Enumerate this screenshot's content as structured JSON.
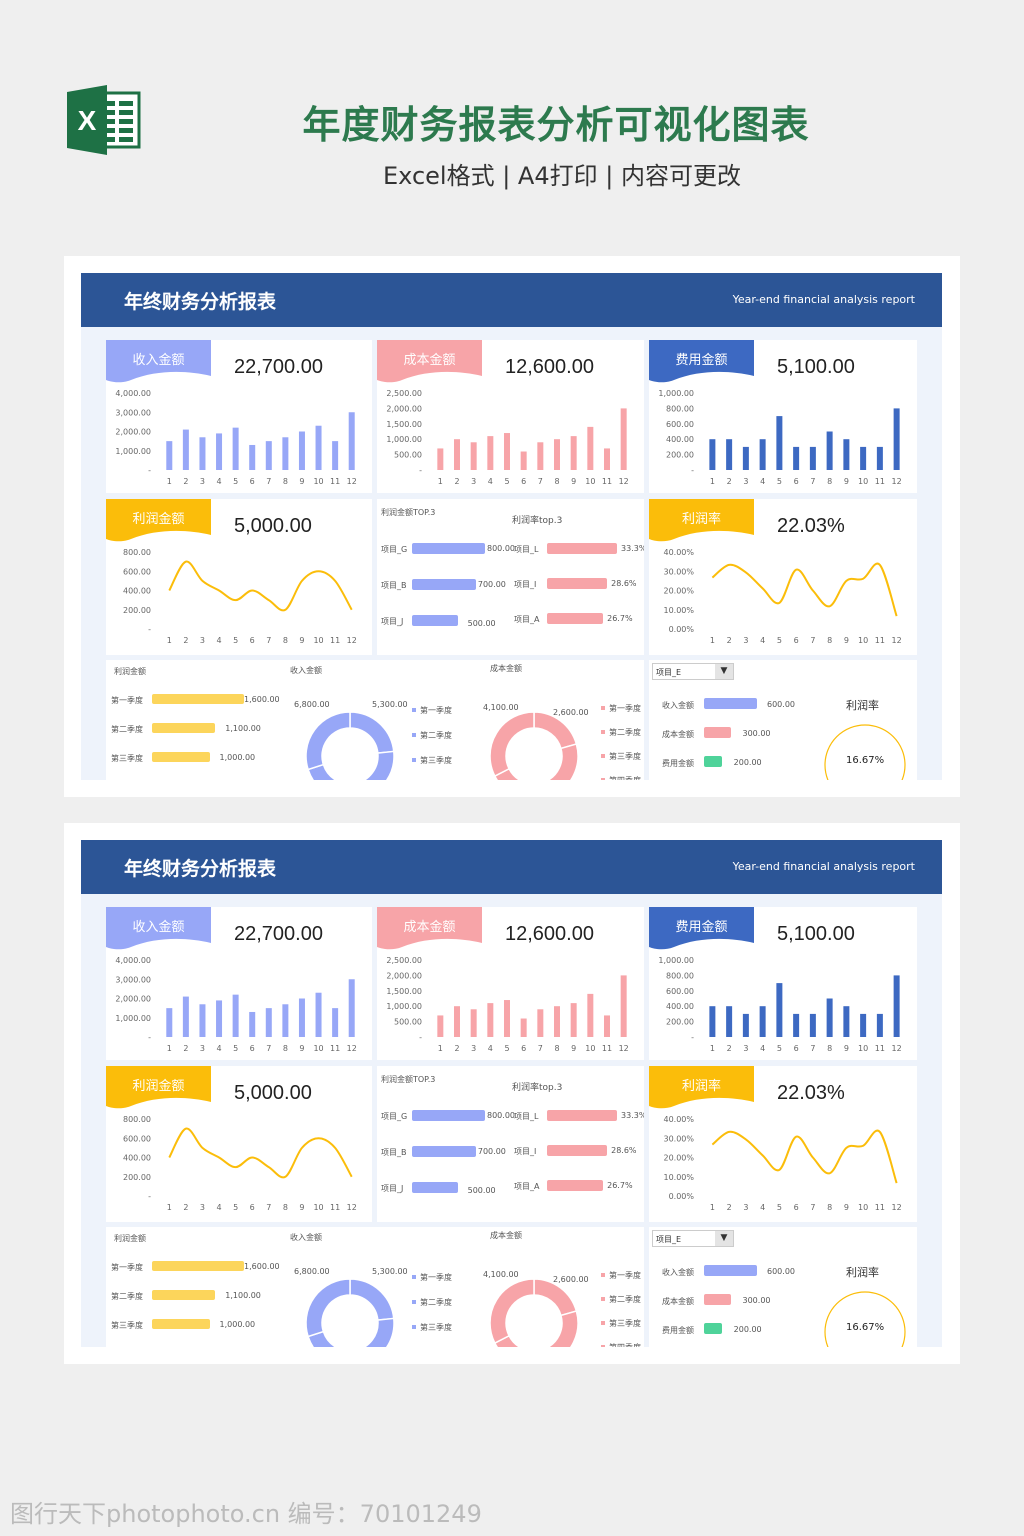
{
  "header": {
    "title": "年度财务报表分析可视化图表",
    "subtitle": "Excel格式 | A4打印 | 内容可更改",
    "logo_letter": "X"
  },
  "watermark": "图行天下photophoto.cn 编号：70101249",
  "dashboard": {
    "title": "年终财务分析报表",
    "subtitle": "Year-end financial analysis report",
    "colors": {
      "income": "#97a7f7",
      "cost": "#f7a4a8",
      "expense": "#3d69c2",
      "profit": "#fbbd0a",
      "green": "#4fd39a",
      "header": "#2c5596"
    },
    "months": [
      "1",
      "2",
      "3",
      "4",
      "5",
      "6",
      "7",
      "8",
      "9",
      "10",
      "11",
      "12"
    ],
    "income": {
      "label": "收入金额",
      "total": "22,700.00",
      "ticks": [
        "4,000.00",
        "3,000.00",
        "2,000.00",
        "1,000.00",
        "-"
      ],
      "max": 4000,
      "values": [
        1500,
        2100,
        1700,
        1900,
        2200,
        1300,
        1500,
        1700,
        2000,
        2300,
        1500,
        3000
      ]
    },
    "cost": {
      "label": "成本金额",
      "total": "12,600.00",
      "ticks": [
        "2,500.00",
        "2,000.00",
        "1,500.00",
        "1,000.00",
        "500.00",
        "-"
      ],
      "max": 2500,
      "values": [
        700,
        1000,
        900,
        1100,
        1200,
        600,
        900,
        1000,
        1100,
        1400,
        700,
        2000
      ]
    },
    "expense": {
      "label": "费用金额",
      "total": "5,100.00",
      "ticks": [
        "1,000.00",
        "800.00",
        "600.00",
        "400.00",
        "200.00",
        "-"
      ],
      "max": 1000,
      "values": [
        400,
        400,
        300,
        400,
        700,
        300,
        300,
        500,
        400,
        300,
        300,
        800
      ]
    },
    "profit": {
      "label": "利润金额",
      "total": "5,000.00",
      "ticks": [
        "800.00",
        "600.00",
        "400.00",
        "200.00",
        "-"
      ],
      "max": 800,
      "values": [
        400,
        700,
        500,
        400,
        300,
        400,
        300,
        200,
        500,
        600,
        500,
        200
      ]
    },
    "rate": {
      "label": "利润率",
      "total": "22.03%",
      "ticks": [
        "40.00%",
        "30.00%",
        "20.00%",
        "10.00%",
        "0.00%"
      ],
      "max": 40,
      "values": [
        26.7,
        33.3,
        29.4,
        21.1,
        13.6,
        30.8,
        20,
        11.8,
        25,
        26.1,
        33.3,
        6.7
      ]
    },
    "top3": {
      "profit_title": "利润金额TOP.3",
      "rate_title": "利润率top.3",
      "profit": [
        {
          "name": "项目_G",
          "value": 800,
          "text": "800.00"
        },
        {
          "name": "项目_B",
          "value": 700,
          "text": "700.00"
        },
        {
          "name": "项目_J",
          "value": 500,
          "text": "500.00"
        }
      ],
      "rate": [
        {
          "name": "项目_L",
          "value": 33.3,
          "text": "33.3%"
        },
        {
          "name": "项目_I",
          "value": 28.6,
          "text": "28.6%"
        },
        {
          "name": "项目_A",
          "value": 26.7,
          "text": "26.7%"
        }
      ]
    },
    "quarters": {
      "profit_title": "利润金额",
      "income_title": "收入金额",
      "cost_title": "成本金额",
      "labels": [
        "第一季度",
        "第二季度",
        "第三季度",
        "第四季度"
      ],
      "profit": [
        {
          "value": 1600,
          "text": "1,600.00"
        },
        {
          "value": 1100,
          "text": "1,100.00"
        },
        {
          "value": 1000,
          "text": "1,000.00"
        }
      ],
      "income": [
        5300,
        5400,
        5200,
        6800
      ],
      "income_labels": [
        "6,800.00",
        "5,300.00"
      ],
      "cost": [
        2600,
        2900,
        3000,
        4100
      ],
      "cost_labels": [
        "4,100.00",
        "2,600.00"
      ]
    },
    "project": {
      "selected": "项目_E",
      "rows": [
        {
          "label": "收入金额",
          "value": 600,
          "text": "600.00"
        },
        {
          "label": "成本金额",
          "value": 300,
          "text": "300.00"
        },
        {
          "label": "费用金额",
          "value": 200,
          "text": "200.00"
        }
      ],
      "rate_title": "利润率",
      "rate": "16.67%",
      "rate_value": 16.67
    }
  }
}
